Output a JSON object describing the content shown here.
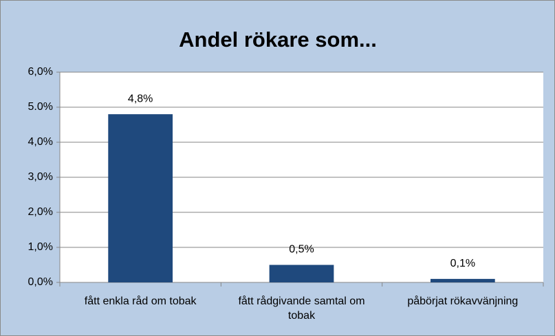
{
  "chart_data": {
    "type": "bar",
    "title": "Andel rökare som...",
    "categories": [
      "fått enkla råd om tobak",
      "fått rådgivande samtal om tobak",
      "påbörjat rökavvänjning"
    ],
    "values": [
      4.8,
      0.5,
      0.1
    ],
    "value_labels": [
      "4,8%",
      "0,5%",
      "0,1%"
    ],
    "color": "#1f497d",
    "ylim": [
      0,
      6
    ],
    "yticks": [
      {
        "value": 0,
        "label": "0,0%"
      },
      {
        "value": 1,
        "label": "1,0%"
      },
      {
        "value": 2,
        "label": "2,0%"
      },
      {
        "value": 3,
        "label": "3,0%"
      },
      {
        "value": 4,
        "label": "4,0%"
      },
      {
        "value": 5,
        "label": "5.0%"
      },
      {
        "value": 6,
        "label": "6,0%"
      }
    ],
    "grid": true
  }
}
